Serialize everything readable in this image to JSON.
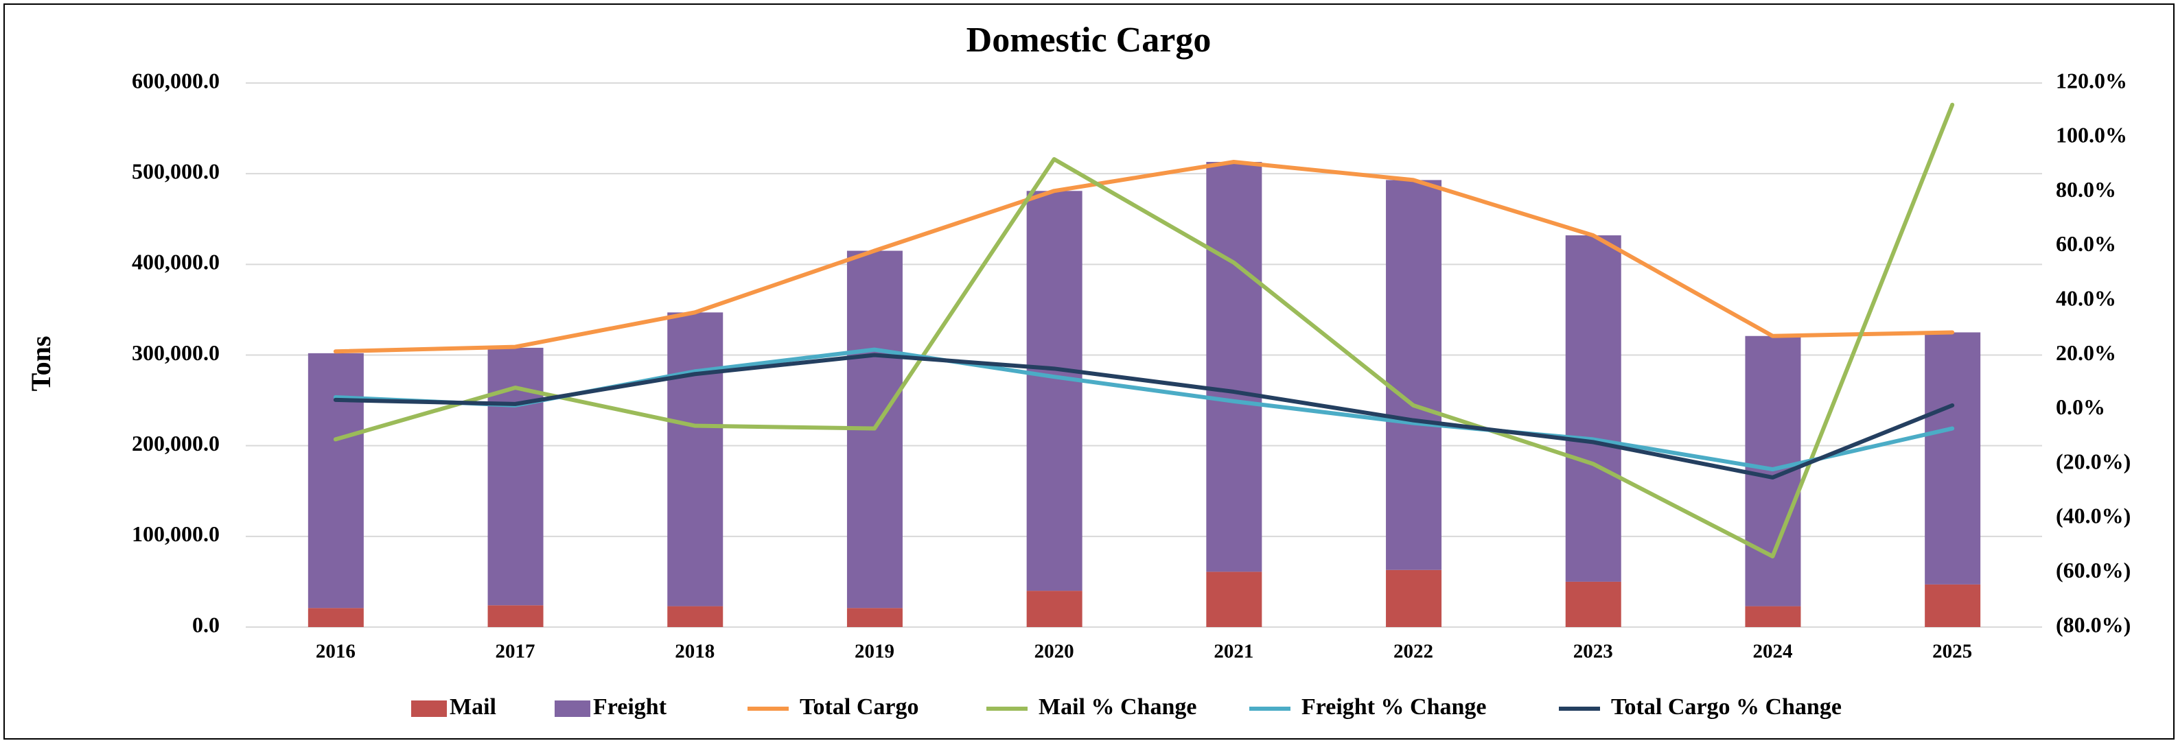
{
  "chart_data": {
    "type": "bar",
    "stacked": true,
    "title": "Domestic Cargo",
    "ylabel": "Tons",
    "categories": [
      "2016",
      "2017",
      "2018",
      "2019",
      "2020",
      "2021",
      "2022",
      "2023",
      "2024",
      "2025"
    ],
    "series": [
      {
        "name": "Mail",
        "kind": "bar",
        "color": "#c0504d",
        "values": [
          21000,
          24000,
          23000,
          21000,
          40000,
          61000,
          63000,
          50000,
          23000,
          47000
        ]
      },
      {
        "name": "Freight",
        "kind": "bar",
        "color": "#8064a2",
        "values": [
          281000,
          284000,
          324000,
          394000,
          441000,
          452000,
          430000,
          382000,
          298000,
          278000
        ]
      },
      {
        "name": "Total Cargo",
        "kind": "line",
        "color": "#f79646",
        "values": [
          304000,
          309000,
          347000,
          415000,
          481000,
          513000,
          493000,
          432000,
          321000,
          325000
        ]
      },
      {
        "name": "Mail % Change",
        "kind": "line",
        "axis": "y2",
        "color": "#9bbb59",
        "values": [
          -11,
          8,
          -6,
          -7,
          92,
          54,
          1.5,
          -20,
          -54,
          112
        ]
      },
      {
        "name": "Freight % Change",
        "kind": "line",
        "axis": "y2",
        "color": "#4bacc6",
        "values": [
          4.5,
          1.5,
          14,
          22,
          12,
          3,
          -5,
          -11,
          -22,
          -7
        ]
      },
      {
        "name": "Total Cargo % Change",
        "kind": "line",
        "axis": "y2",
        "color": "#243f60",
        "values": [
          3.5,
          2,
          13,
          20,
          15,
          6.5,
          -4,
          -12,
          -25,
          1.5
        ]
      }
    ],
    "ylim": [
      0,
      600000
    ],
    "yticks": [
      {
        "value": 0,
        "label": "0.0"
      },
      {
        "value": 100000,
        "label": "100,000.0"
      },
      {
        "value": 200000,
        "label": "200,000.0"
      },
      {
        "value": 300000,
        "label": "300,000.0"
      },
      {
        "value": 400000,
        "label": "400,000.0"
      },
      {
        "value": 500000,
        "label": "500,000.0"
      },
      {
        "value": 600000,
        "label": "600,000.0"
      }
    ],
    "y2lim": [
      -80,
      120
    ],
    "y2ticks": [
      {
        "value": -80,
        "label": "(80.0%)"
      },
      {
        "value": -60,
        "label": "(60.0%)"
      },
      {
        "value": -40,
        "label": "(40.0%)"
      },
      {
        "value": -20,
        "label": "(20.0%)"
      },
      {
        "value": 0,
        "label": "0.0%"
      },
      {
        "value": 20,
        "label": "20.0%"
      },
      {
        "value": 40,
        "label": "40.0%"
      },
      {
        "value": 60,
        "label": "60.0%"
      },
      {
        "value": 80,
        "label": "80.0%"
      },
      {
        "value": 100,
        "label": "100.0%"
      },
      {
        "value": 120,
        "label": "120.0%"
      }
    ],
    "grid": true,
    "legend": "bottom"
  }
}
